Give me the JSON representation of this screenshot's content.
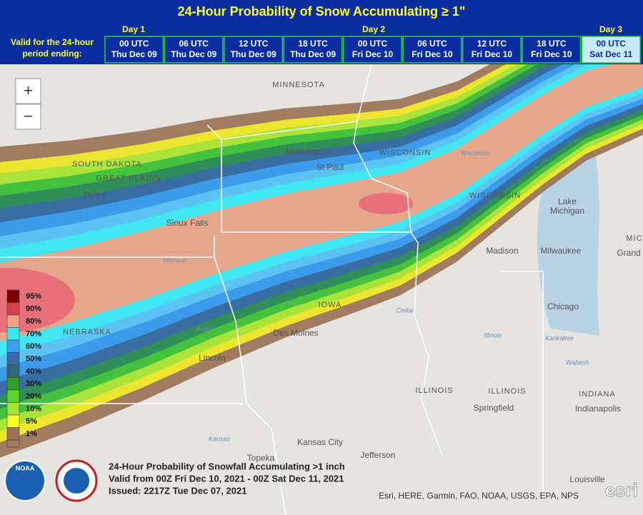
{
  "header": {
    "title": "24-Hour Probability of Snow Accumulating ≥ 1\"",
    "valid_label": [
      "Valid for the 24-hour",
      "period ending:"
    ],
    "days": [
      "Day 1",
      "Day 2",
      "Day 3"
    ],
    "times": [
      {
        "time": "00 UTC",
        "date": "Thu Dec 09"
      },
      {
        "time": "06 UTC",
        "date": "Thu Dec 09"
      },
      {
        "time": "12 UTC",
        "date": "Thu Dec 09"
      },
      {
        "time": "18 UTC",
        "date": "Thu Dec 09"
      },
      {
        "time": "00 UTC",
        "date": "Fri Dec 10"
      },
      {
        "time": "06 UTC",
        "date": "Fri Dec 10"
      },
      {
        "time": "12 UTC",
        "date": "Fri Dec 10"
      },
      {
        "time": "18 UTC",
        "date": "Fri Dec 10"
      },
      {
        "time": "00 UTC",
        "date": "Sat Dec 11"
      }
    ]
  },
  "zoom": [
    "+",
    "−"
  ],
  "legend": [
    "95%",
    "90%",
    "80%",
    "70%",
    "60%",
    "50%",
    "40%",
    "30%",
    "20%",
    "10%",
    "5%",
    "1%"
  ],
  "map_labels": [
    "MINNESOTA",
    "SOUTH DAKOTA",
    "GREAT PLAINS",
    "Pierre",
    "Minneapolis",
    "St Paul",
    "WISCONSIN",
    "WISCONSIN",
    "Sioux Falls",
    "Madison",
    "Milwaukee",
    "Lake",
    "Michigan",
    "MIC",
    "Grand",
    "Chicago",
    "IOWA",
    "Des Moines",
    "NEBRASKA",
    "Lincoln",
    "ILLINOIS",
    "ILLINOIS",
    "INDIANA",
    "Springfield",
    "Indianapolis",
    "Kansas City",
    "Topeka",
    "Jefferson",
    "Louisville"
  ],
  "river_labels": [
    "Kansas",
    "Platte",
    "Cedar",
    "Illinois",
    "Kankakee",
    "Wabash",
    "Missouri",
    "Wisconsin"
  ],
  "caption": [
    "24-Hour Probability of Snowfall Accumulating >1 inch",
    "Valid from 00Z Fri Dec 10, 2021 - 00Z Sat Dec 11, 2021",
    "Issued: 2217Z Tue Dec 07, 2021"
  ],
  "logo": "NOAA",
  "attribution": "Esri, HERE, Garmin, FAO, NOAA, USGS, EPA, NPS",
  "esri": "esri"
}
